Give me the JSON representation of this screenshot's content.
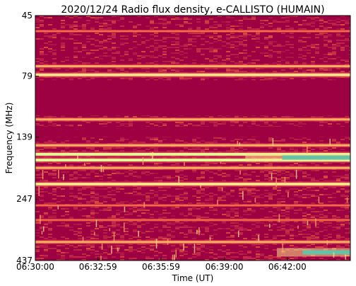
{
  "chart_data": {
    "type": "heatmap",
    "title": "2020/12/24  Radio flux density, e-CALLISTO (HUMAIN)",
    "xlabel": "Time (UT)",
    "ylabel": "Frequency (MHz)",
    "x_ticks": [
      "06:30:00",
      "06:32:59",
      "06:35:59",
      "06:39:00",
      "06:42:00"
    ],
    "y_ticks": [
      "45",
      "79",
      "139",
      "247",
      "437"
    ],
    "x_tick_values_min": [
      0,
      2.983,
      5.983,
      9.0,
      12.0
    ],
    "xlim_min": [
      0,
      15.0
    ],
    "ylim_mhz": [
      45,
      437
    ],
    "y_axis": "frequency increasing downward, log-like spacing",
    "grid": false,
    "legend": "none",
    "colormap": "Spectral",
    "colors": {
      "background": "#9e0142",
      "low": "#9e0142",
      "mid_low": "#d53e4f",
      "mid": "#f46d43",
      "mid_high": "#fdae61",
      "high": "#fee08b",
      "very_high": "#e6f598",
      "peak": "#66c2a5"
    },
    "features": [
      {
        "kind": "band",
        "freq_mhz": 52,
        "level": "mid"
      },
      {
        "kind": "band",
        "freq_mhz": 72,
        "level": "mid_high"
      },
      {
        "kind": "band",
        "freq_mhz": 78,
        "level": "high"
      },
      {
        "kind": "quiet_region",
        "freq_mhz_range": [
          82,
          114
        ],
        "level": "low"
      },
      {
        "kind": "band",
        "freq_mhz": 118,
        "level": "mid_high"
      },
      {
        "kind": "quiet_region",
        "freq_mhz_range": [
          126,
          139
        ],
        "level": "low"
      },
      {
        "kind": "band",
        "freq_mhz": 150,
        "level": "mid_high"
      },
      {
        "kind": "band",
        "freq_mhz": 163,
        "level": "very_high"
      },
      {
        "kind": "band",
        "freq_mhz": 172,
        "level": "very_high"
      },
      {
        "kind": "band",
        "freq_mhz": 185,
        "level": "mid_high"
      },
      {
        "kind": "band",
        "freq_mhz": 215,
        "level": "high"
      },
      {
        "kind": "band",
        "freq_mhz": 262,
        "level": "mid"
      },
      {
        "kind": "band",
        "freq_mhz": 300,
        "level": "mid"
      },
      {
        "kind": "band",
        "freq_mhz": 368,
        "level": "mid_high"
      },
      {
        "kind": "burst",
        "freq_mhz": 168,
        "time_min_range": [
          10.0,
          15.0
        ],
        "level": "peak"
      },
      {
        "kind": "burst",
        "freq_mhz": 405,
        "time_min_range": [
          11.5,
          15.0
        ],
        "level": "peak"
      }
    ]
  }
}
